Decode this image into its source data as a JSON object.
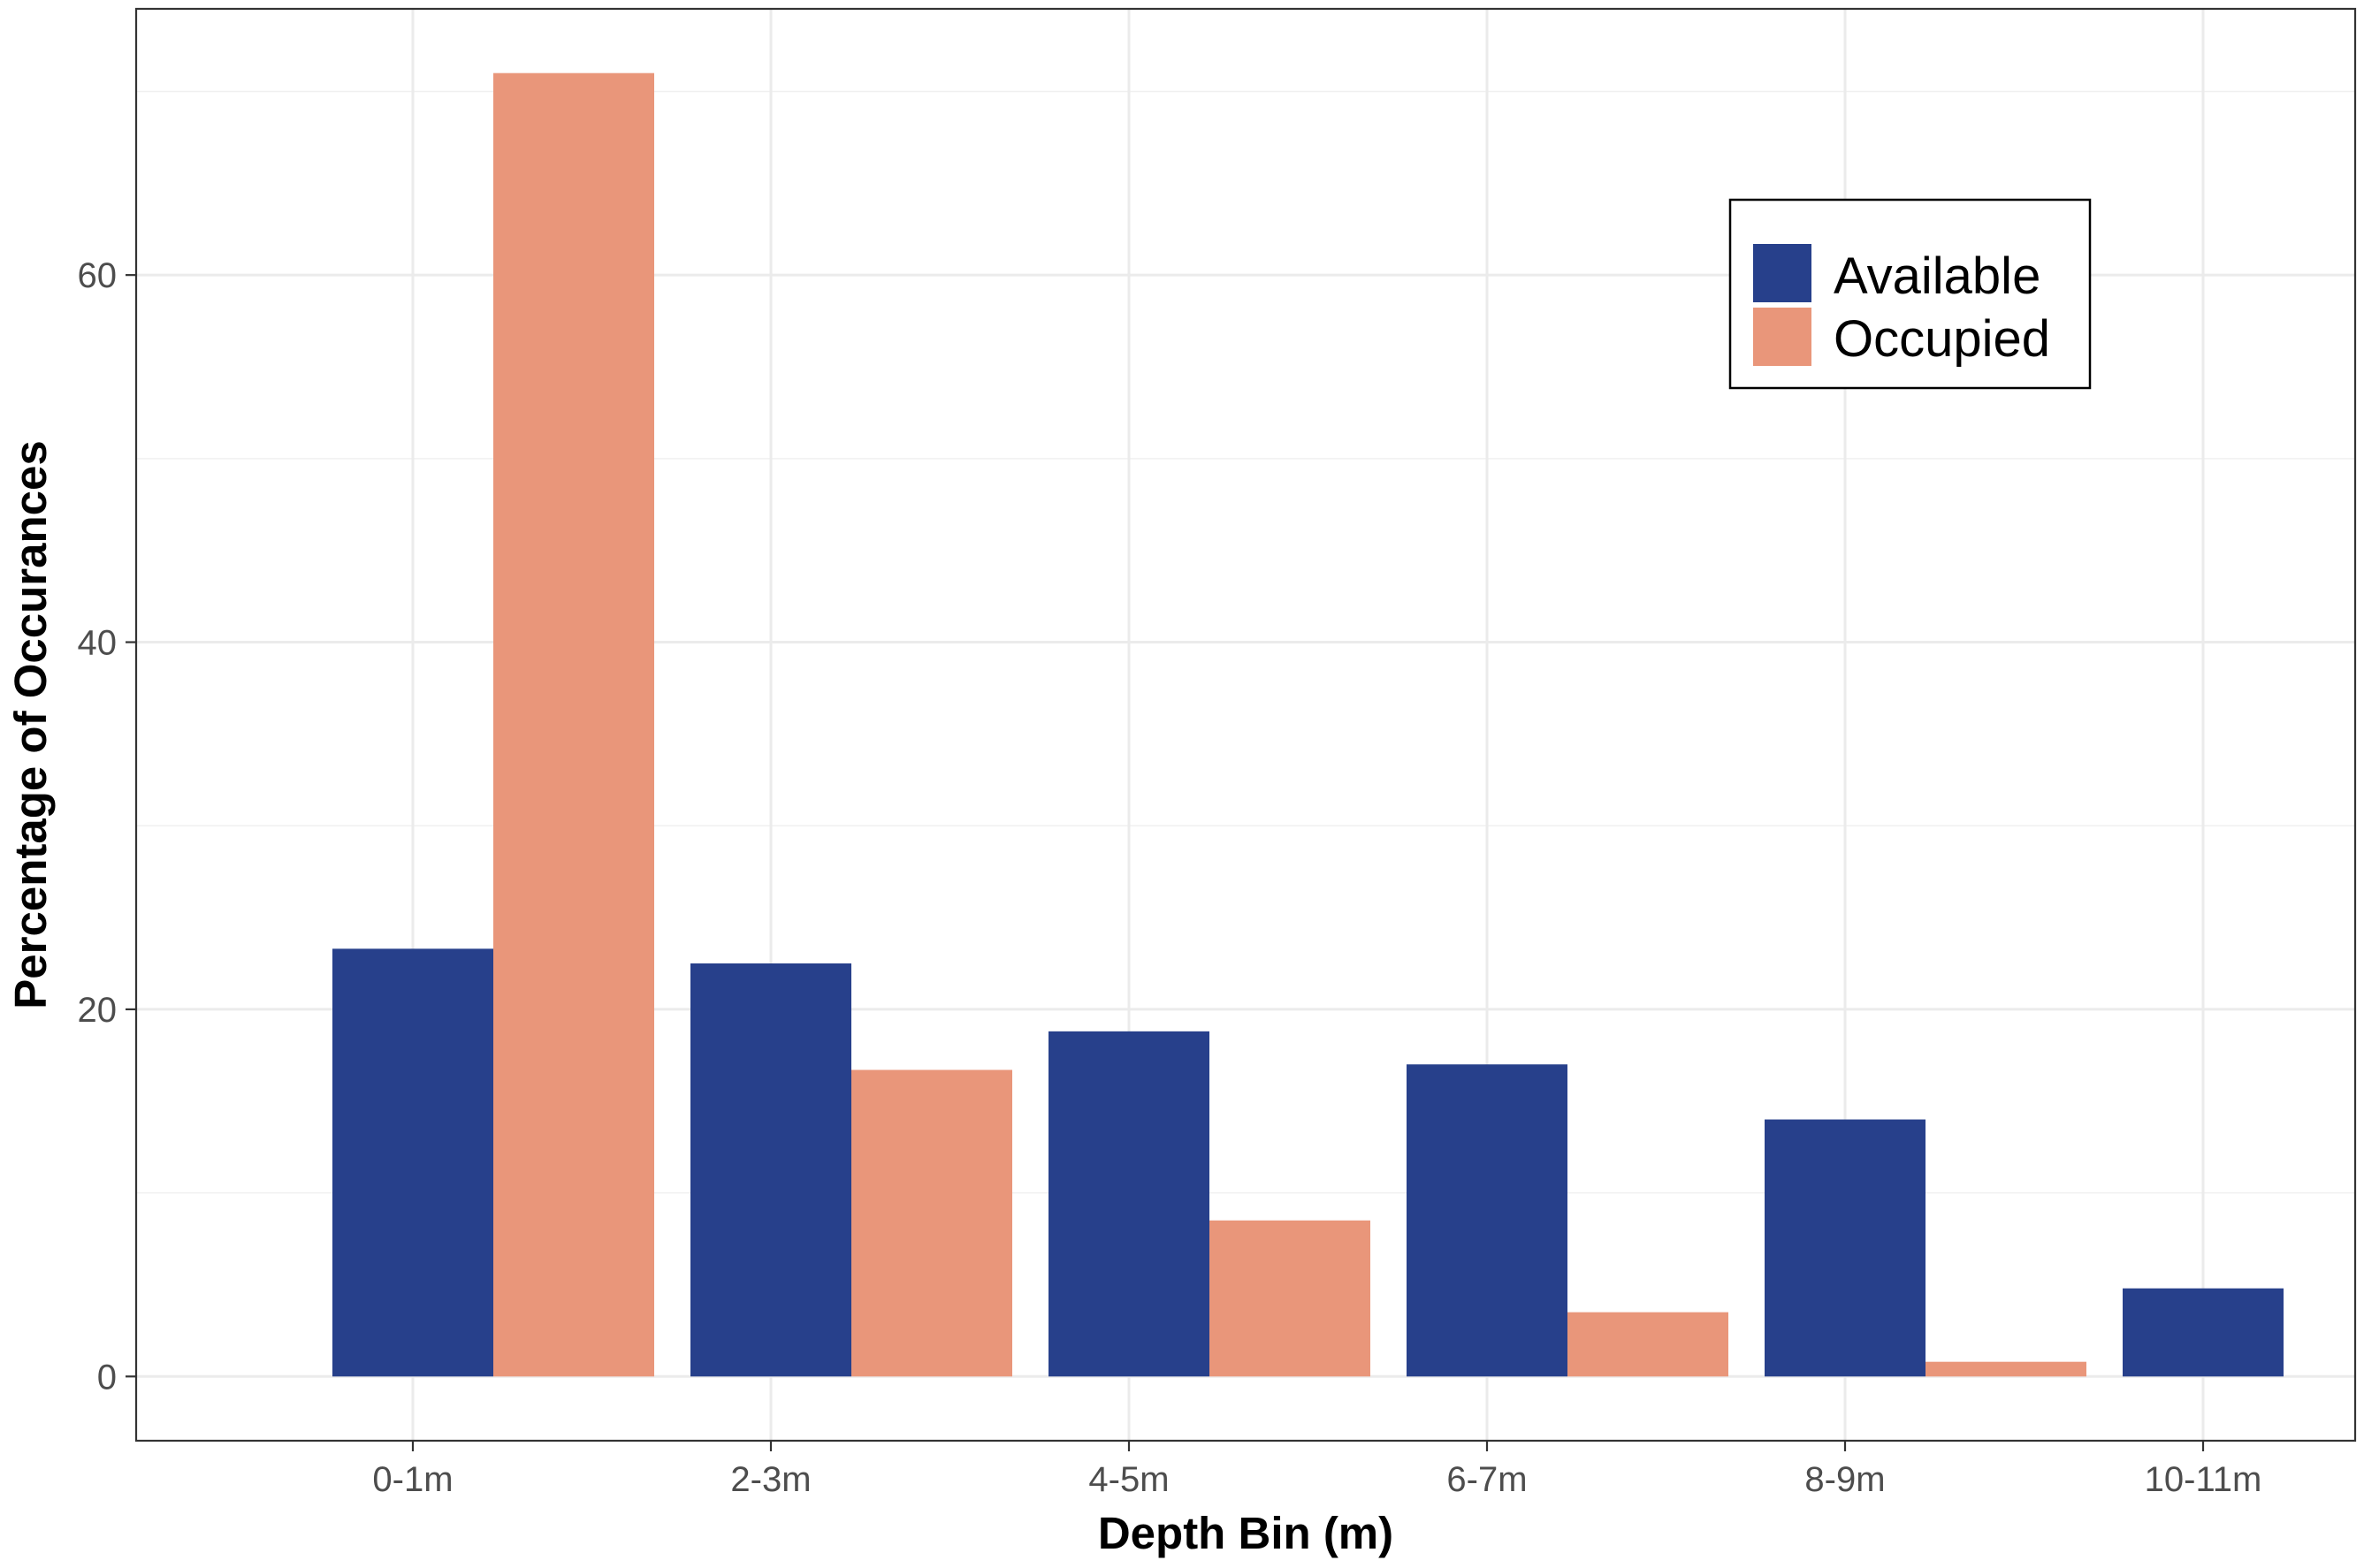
{
  "chart_data": {
    "type": "bar",
    "title": "",
    "xlabel": "Depth Bin (m)",
    "ylabel": "Percentage of Occurances",
    "categories": [
      "0-1m",
      "2-3m",
      "4-5m",
      "6-7m",
      "8-9m",
      "10-11m"
    ],
    "series": [
      {
        "name": "Available",
        "color": "#27408B",
        "values": [
          23.3,
          22.5,
          18.8,
          17.0,
          14.0,
          4.8
        ]
      },
      {
        "name": "Occupied",
        "color": "#E9967A",
        "values": [
          71.0,
          16.7,
          8.5,
          3.5,
          0.8,
          0.0
        ]
      }
    ],
    "ylim": [
      -3.5,
      74.5
    ],
    "yticks": [
      0,
      20,
      40,
      60
    ],
    "grid": true,
    "legend_position": "top-right"
  }
}
